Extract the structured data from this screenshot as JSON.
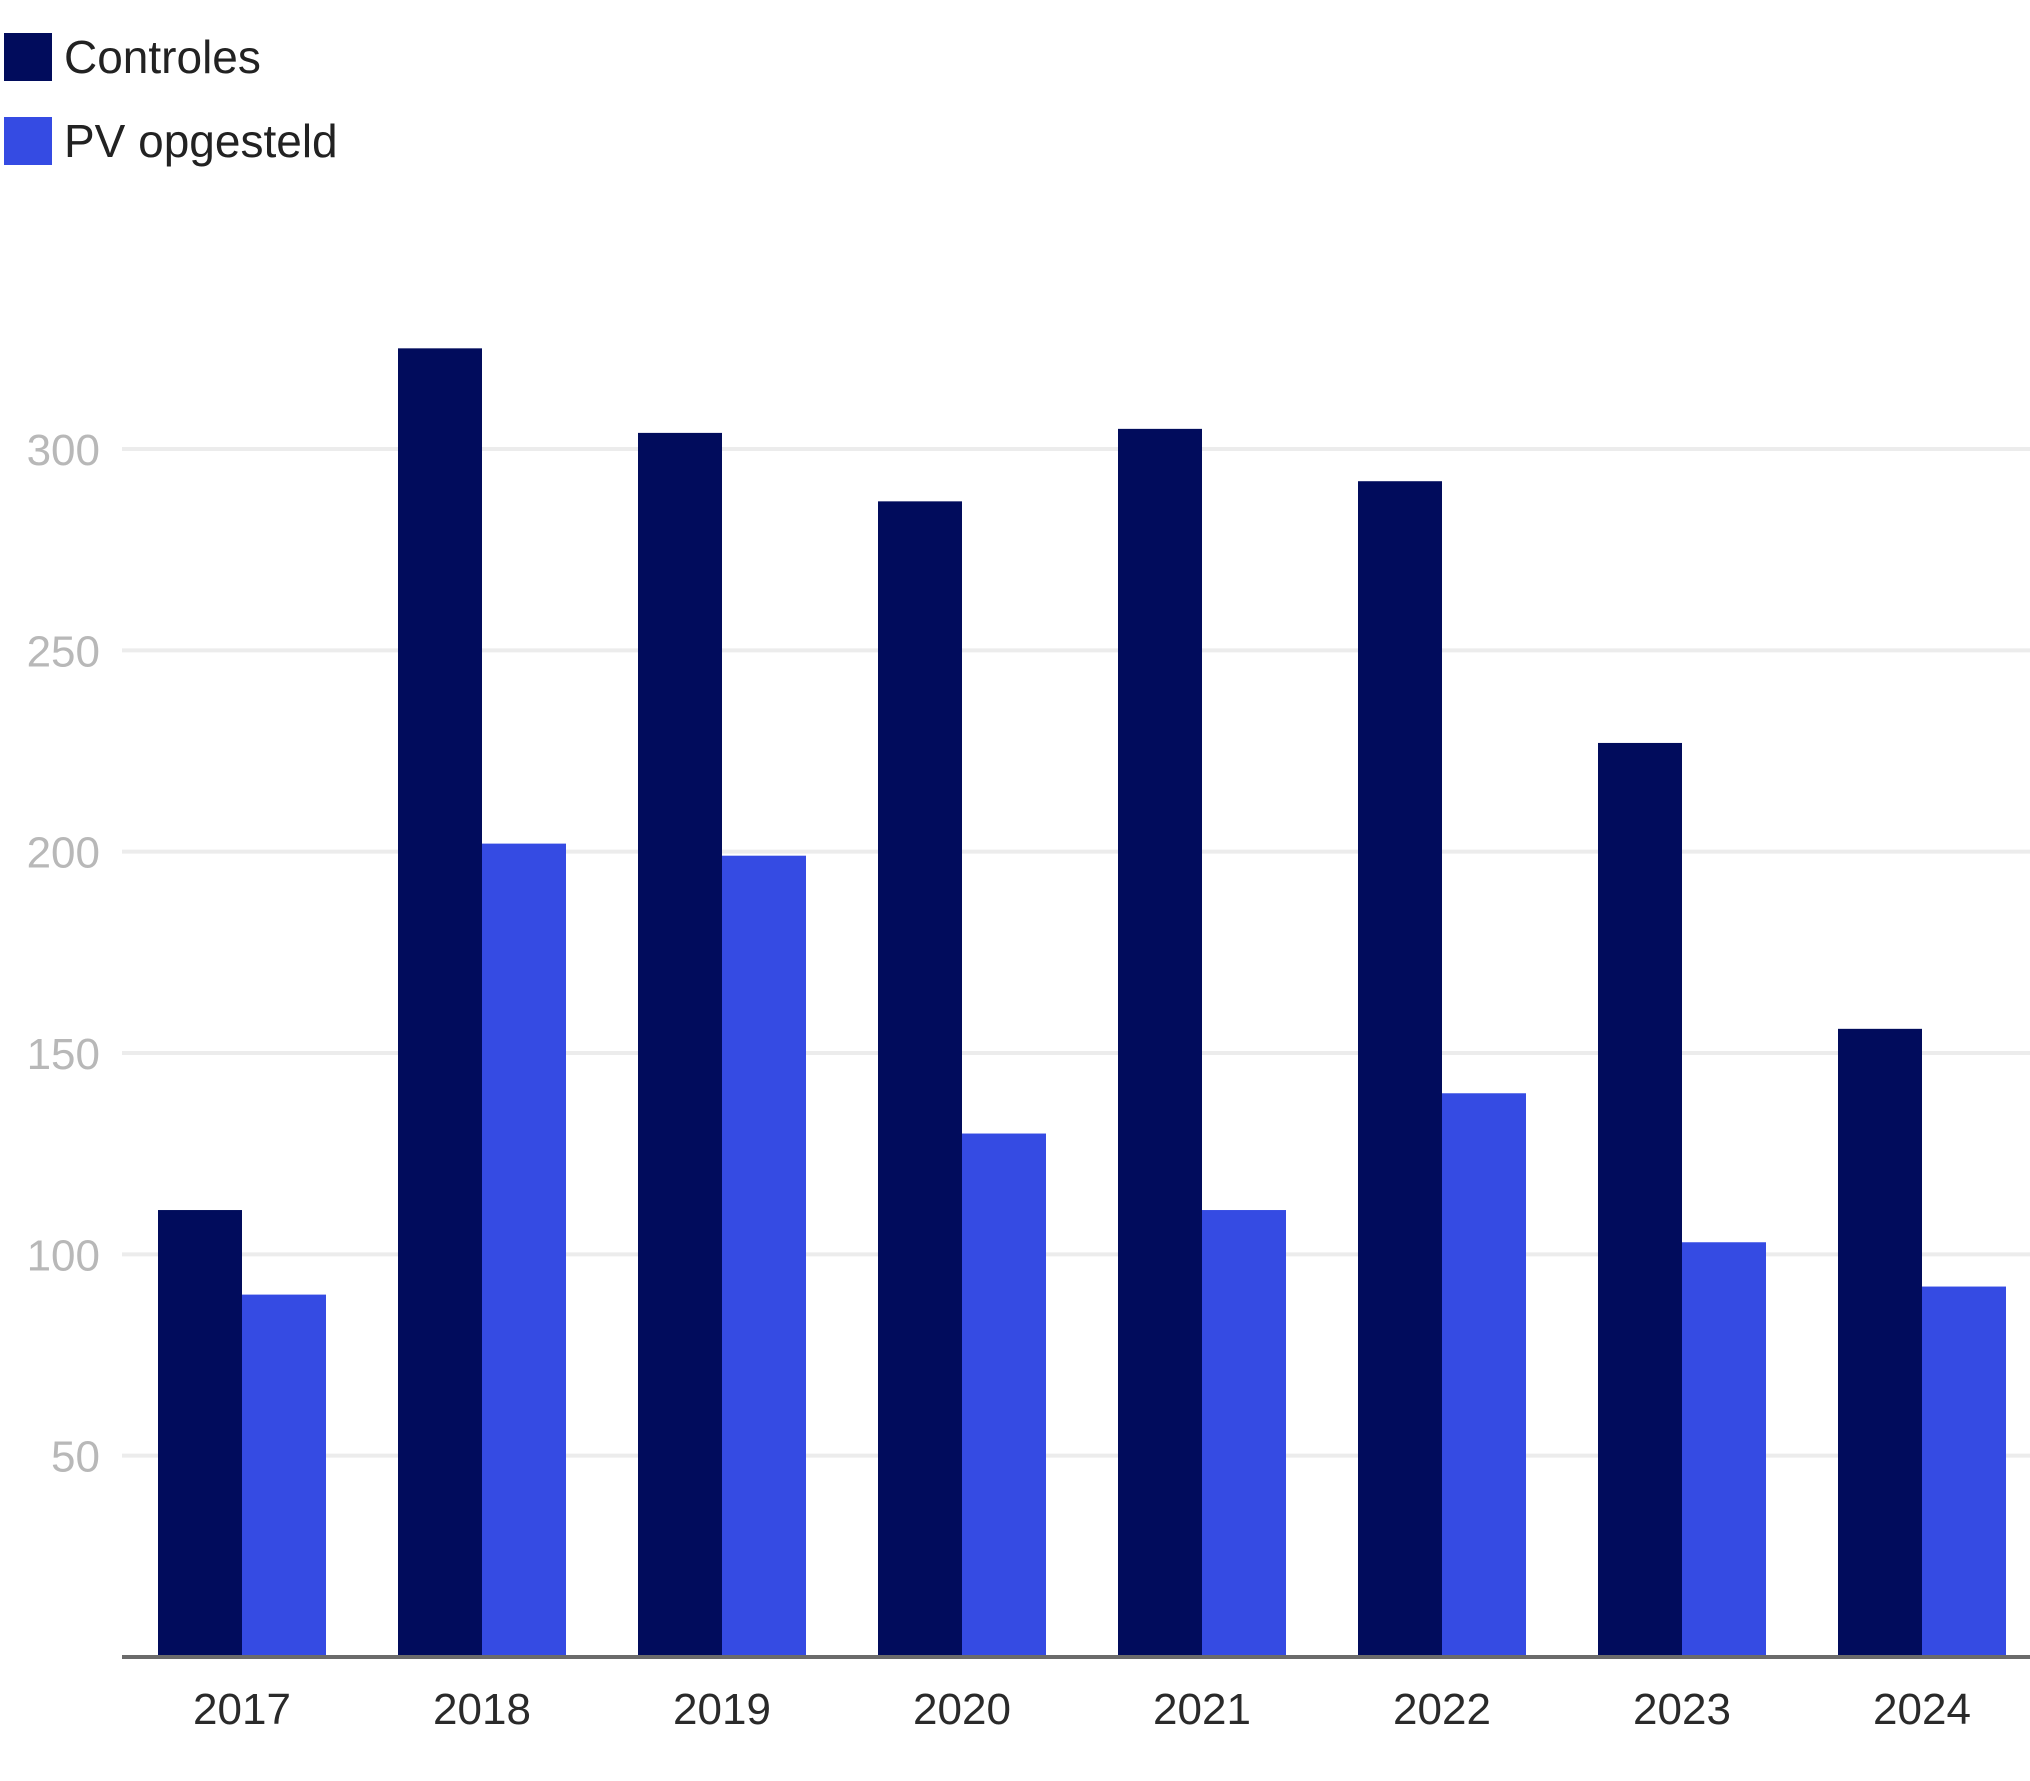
{
  "chart_data": {
    "type": "bar",
    "categories": [
      "2017",
      "2018",
      "2019",
      "2020",
      "2021",
      "2022",
      "2023",
      "2024"
    ],
    "series": [
      {
        "name": "Controles",
        "color": "#010c5c",
        "values": [
          111,
          325,
          304,
          287,
          305,
          292,
          227,
          156
        ]
      },
      {
        "name": "PV opgesteld",
        "color": "#354be3",
        "values": [
          90,
          202,
          199,
          130,
          111,
          140,
          103,
          92
        ]
      }
    ],
    "yticks": [
      50,
      100,
      150,
      200,
      250,
      300
    ],
    "ylim": [
      0,
      325
    ],
    "grid": true,
    "legend_position": "top-left",
    "title": "",
    "xlabel": "",
    "ylabel": ""
  }
}
